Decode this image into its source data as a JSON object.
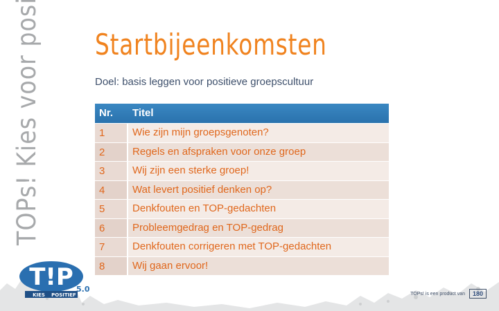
{
  "side_text": "TOPs! Kies voor positief",
  "title": "Startbijeenkomsten",
  "goal": {
    "label": "Doel:",
    "text": " basis leggen voor positieve groepscultuur"
  },
  "table": {
    "headers": [
      "Nr.",
      "Titel"
    ],
    "rows": [
      {
        "nr": "1",
        "title": "Wie zijn mijn groepsgenoten?"
      },
      {
        "nr": "2",
        "title": "Regels en afspraken voor onze groep"
      },
      {
        "nr": "3",
        "title": "Wij zijn een sterke groep!"
      },
      {
        "nr": "4",
        "title": "Wat levert positief denken op?"
      },
      {
        "nr": "5",
        "title": "Denkfouten en TOP-gedachten"
      },
      {
        "nr": "6",
        "title": "Probleemgedrag en TOP-gedrag"
      },
      {
        "nr": "7",
        "title": "Denkfouten corrigeren met TOP-gedachten"
      },
      {
        "nr": "8",
        "title": "Wij gaan ervoor!"
      }
    ]
  },
  "logo": {
    "letters": "T!P",
    "sub_left": "KIES",
    "sub_right": "POSITIEF",
    "mark": "5.0"
  },
  "footer": {
    "text": "TOPs! is een product van",
    "badge": "180"
  },
  "colors": {
    "orange": "#f0831f",
    "blue_header": "#2f7bb8",
    "grey_side": "#a7a9ab"
  }
}
